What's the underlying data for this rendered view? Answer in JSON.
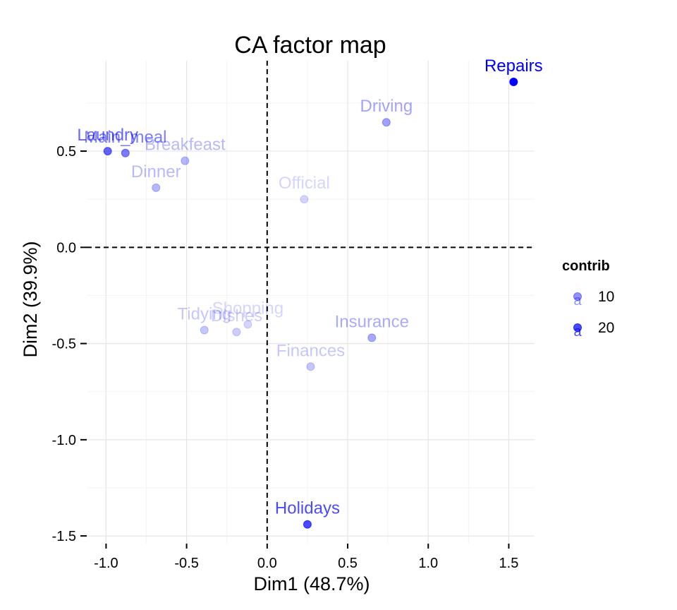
{
  "chart_data": {
    "type": "scatter",
    "title": "CA factor map",
    "xlabel": "Dim1 (48.7%)",
    "ylabel": "Dim2 (39.9%)",
    "xlim": [
      -1.12,
      1.66
    ],
    "ylim": [
      -1.54,
      0.97
    ],
    "xticks": [
      -1.0,
      -0.5,
      0.0,
      0.5,
      1.0,
      1.5
    ],
    "xtick_labels": [
      "-1.0",
      "-0.5",
      "0.0",
      "0.5",
      "1.0",
      "1.5"
    ],
    "yticks": [
      -1.5,
      -1.0,
      -0.5,
      0.0,
      0.5
    ],
    "ytick_labels": [
      "-1.5",
      "-1.0",
      "-0.5",
      "0.0",
      "0.5"
    ],
    "grid": true,
    "reference_lines": {
      "x": 0,
      "y": 0,
      "style": "dashed"
    },
    "color": "#0000ff",
    "points": [
      {
        "label": "Laundry",
        "x": -0.99,
        "y": 0.5,
        "contrib": 16
      },
      {
        "label": "Main_meal",
        "x": -0.88,
        "y": 0.49,
        "contrib": 13
      },
      {
        "label": "Dinner",
        "x": -0.69,
        "y": 0.31,
        "contrib": 5
      },
      {
        "label": "Breakfeast",
        "x": -0.51,
        "y": 0.45,
        "contrib": 5
      },
      {
        "label": "Tidying",
        "x": -0.39,
        "y": -0.43,
        "contrib": 3
      },
      {
        "label": "Dishes",
        "x": -0.19,
        "y": -0.44,
        "contrib": 2
      },
      {
        "label": "Shopping",
        "x": -0.12,
        "y": -0.4,
        "contrib": 1
      },
      {
        "label": "Official",
        "x": 0.23,
        "y": 0.25,
        "contrib": 1
      },
      {
        "label": "Driving",
        "x": 0.74,
        "y": 0.65,
        "contrib": 8
      },
      {
        "label": "Finances",
        "x": 0.27,
        "y": -0.62,
        "contrib": 3
      },
      {
        "label": "Insurance",
        "x": 0.65,
        "y": -0.47,
        "contrib": 7
      },
      {
        "label": "Repairs",
        "x": 1.53,
        "y": 0.86,
        "contrib": 30
      },
      {
        "label": "Holidays",
        "x": 0.25,
        "y": -1.44,
        "contrib": 20
      }
    ],
    "legend": {
      "title": "contrib",
      "placement": "right",
      "entries": [
        {
          "label": "10",
          "value": 10
        },
        {
          "label": "20",
          "value": 20
        }
      ],
      "key_glyph": "a"
    }
  }
}
